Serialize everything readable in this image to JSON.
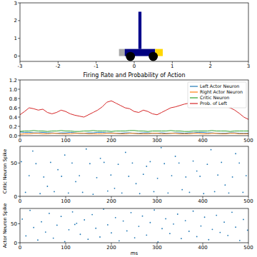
{
  "chart_data": [
    {
      "type": "cartpole",
      "xlim": [
        -3,
        3
      ],
      "ylim": [
        -0.3,
        3
      ],
      "xticks": [
        -3,
        -2,
        -1,
        0,
        1,
        2,
        3
      ],
      "yticks": [
        0,
        1,
        2,
        3
      ],
      "cart_position": 0.2,
      "pole_angle": 0
    },
    {
      "type": "line",
      "title": "Firing Rate and Probability of Action",
      "legend": "upper right",
      "xlim": [
        0,
        500
      ],
      "ylim": [
        0,
        1.2
      ],
      "xticks": [
        0,
        100,
        200,
        300,
        400,
        500
      ],
      "yticks": [
        {
          "value": 0,
          "label": "0.0"
        },
        {
          "value": 0.2,
          "label": "0.2"
        },
        {
          "value": 0.4,
          "label": "0.4"
        },
        {
          "value": 0.6,
          "label": "0.6"
        },
        {
          "value": 0.8,
          "label": "0.8"
        },
        {
          "value": 1.0,
          "label": "1.0"
        },
        {
          "value": 1.2,
          "label": "1.2"
        }
      ],
      "x": [
        0,
        10,
        20,
        30,
        40,
        50,
        60,
        70,
        80,
        90,
        100,
        110,
        120,
        130,
        140,
        150,
        160,
        170,
        180,
        190,
        200,
        210,
        220,
        230,
        240,
        250,
        260,
        270,
        280,
        290,
        300,
        310,
        320,
        330,
        340,
        350,
        360,
        370,
        380,
        390,
        400,
        410,
        420,
        430,
        440,
        450,
        460,
        470,
        480,
        490,
        500
      ],
      "series": [
        {
          "name": "Left Actor Neuron",
          "color": "#1f77b4",
          "values": [
            0.08,
            0.07,
            0.07,
            0.06,
            0.06,
            0.07,
            0.06,
            0.06,
            0.05,
            0.06,
            0.06,
            0.07,
            0.06,
            0.05,
            0.05,
            0.06,
            0.06,
            0.07,
            0.07,
            0.06,
            0.06,
            0.05,
            0.05,
            0.06,
            0.06,
            0.05,
            0.05,
            0.06,
            0.06,
            0.05,
            0.05,
            0.06,
            0.05,
            0.05,
            0.06,
            0.06,
            0.05,
            0.06,
            0.06,
            0.07,
            0.07,
            0.06,
            0.06,
            0.05,
            0.05,
            0.05,
            0.06,
            0.06,
            0.05,
            0.05,
            0.05
          ]
        },
        {
          "name": "Right Actor Neuron",
          "color": "#ff7f0e",
          "values": [
            0.03,
            0.04,
            0.04,
            0.05,
            0.05,
            0.04,
            0.04,
            0.05,
            0.05,
            0.04,
            0.04,
            0.04,
            0.05,
            0.05,
            0.05,
            0.04,
            0.04,
            0.04,
            0.04,
            0.05,
            0.05,
            0.05,
            0.04,
            0.04,
            0.05,
            0.05,
            0.04,
            0.04,
            0.04,
            0.05,
            0.05,
            0.04,
            0.04,
            0.05,
            0.05,
            0.04,
            0.04,
            0.04,
            0.05,
            0.05,
            0.04,
            0.04,
            0.05,
            0.05,
            0.04,
            0.04,
            0.05,
            0.05,
            0.04,
            0.04,
            0.04
          ]
        },
        {
          "name": "Critic Neuron",
          "color": "#2ca02c",
          "values": [
            0.09,
            0.1,
            0.1,
            0.11,
            0.1,
            0.1,
            0.09,
            0.1,
            0.1,
            0.11,
            0.1,
            0.1,
            0.09,
            0.09,
            0.1,
            0.1,
            0.11,
            0.1,
            0.1,
            0.1,
            0.09,
            0.1,
            0.1,
            0.1,
            0.11,
            0.11,
            0.1,
            0.1,
            0.09,
            0.1,
            0.1,
            0.1,
            0.1,
            0.11,
            0.1,
            0.1,
            0.09,
            0.09,
            0.1,
            0.1,
            0.1,
            0.1,
            0.11,
            0.1,
            0.1,
            0.1,
            0.09,
            0.1,
            0.1,
            0.1,
            0.1
          ]
        },
        {
          "name": "Prob. of Left",
          "color": "#d62728",
          "values": [
            0.45,
            0.52,
            0.6,
            0.58,
            0.55,
            0.57,
            0.5,
            0.47,
            0.5,
            0.55,
            0.52,
            0.47,
            0.44,
            0.42,
            0.4,
            0.45,
            0.5,
            0.55,
            0.62,
            0.72,
            0.75,
            0.7,
            0.65,
            0.6,
            0.58,
            0.52,
            0.5,
            0.55,
            0.52,
            0.47,
            0.45,
            0.5,
            0.55,
            0.6,
            0.62,
            0.65,
            0.68,
            0.7,
            0.72,
            0.68,
            0.72,
            0.75,
            0.77,
            0.7,
            0.65,
            0.62,
            0.6,
            0.55,
            0.48,
            0.4,
            0.35
          ]
        }
      ]
    },
    {
      "type": "scatter",
      "marker": "dot",
      "color": "#1f77b4",
      "ylabel": "Critic Neuron Spike",
      "xlim": [
        0,
        500
      ],
      "ylim": [
        0,
        75
      ],
      "xticks": [
        0,
        100,
        200,
        300,
        400,
        500
      ],
      "yticks": [
        0,
        50
      ],
      "x": [
        3,
        12,
        20,
        28,
        35,
        44,
        52,
        60,
        67,
        75,
        83,
        91,
        98,
        106,
        114,
        122,
        130,
        137,
        145,
        153,
        160,
        168,
        176,
        184,
        192,
        199,
        207,
        215,
        223,
        231,
        238,
        246,
        254,
        262,
        270,
        277,
        285,
        293,
        301,
        309,
        316,
        324,
        332,
        340,
        348,
        355,
        363,
        371,
        379,
        387,
        394,
        402,
        410,
        418,
        426,
        433,
        441,
        449,
        457,
        465,
        472,
        480,
        488,
        495
      ],
      "y": [
        52,
        6,
        31,
        68,
        49,
        4,
        29,
        15,
        51,
        7,
        40,
        30,
        62,
        5,
        50,
        22,
        31,
        6,
        71,
        49,
        3,
        28,
        57,
        51,
        8,
        32,
        12,
        48,
        5,
        66,
        30,
        50,
        19,
        4,
        33,
        45,
        52,
        7,
        27,
        73,
        49,
        5,
        31,
        60,
        50,
        10,
        29,
        6,
        53,
        38,
        30,
        4,
        48,
        70,
        7,
        32,
        51,
        17,
        5,
        29,
        64,
        50,
        6,
        31
      ]
    },
    {
      "type": "scatter",
      "marker": "dot",
      "color": "#1f77b4",
      "ylabel": "Actor Neuron Spike",
      "xlabel": "ms",
      "xlim": [
        0,
        500
      ],
      "ylim": [
        0,
        90
      ],
      "xticks": [
        0,
        100,
        200,
        300,
        400,
        500
      ],
      "yticks": [
        0,
        50
      ],
      "x": [
        5,
        13,
        22,
        30,
        39,
        47,
        56,
        64,
        73,
        81,
        90,
        98,
        107,
        115,
        124,
        132,
        141,
        149,
        158,
        166,
        175,
        183,
        192,
        200,
        209,
        217,
        226,
        234,
        243,
        251,
        260,
        268,
        277,
        285,
        294,
        302,
        311,
        319,
        328,
        336,
        345,
        353,
        362,
        370,
        379,
        387,
        396,
        404,
        413,
        421,
        430,
        438,
        447,
        455,
        464,
        472,
        481,
        489,
        498,
        120
      ],
      "y": [
        62,
        18,
        85,
        40,
        7,
        55,
        28,
        77,
        12,
        46,
        69,
        3,
        34,
        81,
        51,
        22,
        60,
        9,
        74,
        38,
        15,
        88,
        47,
        26,
        66,
        5,
        57,
        31,
        79,
        13,
        43,
        70,
        20,
        53,
        86,
        2,
        37,
        63,
        24,
        49,
        75,
        11,
        58,
        30,
        83,
        16,
        44,
        67,
        8,
        35,
        72,
        27,
        54,
        19,
        80,
        41,
        6,
        61,
        33,
        48
      ]
    }
  ]
}
